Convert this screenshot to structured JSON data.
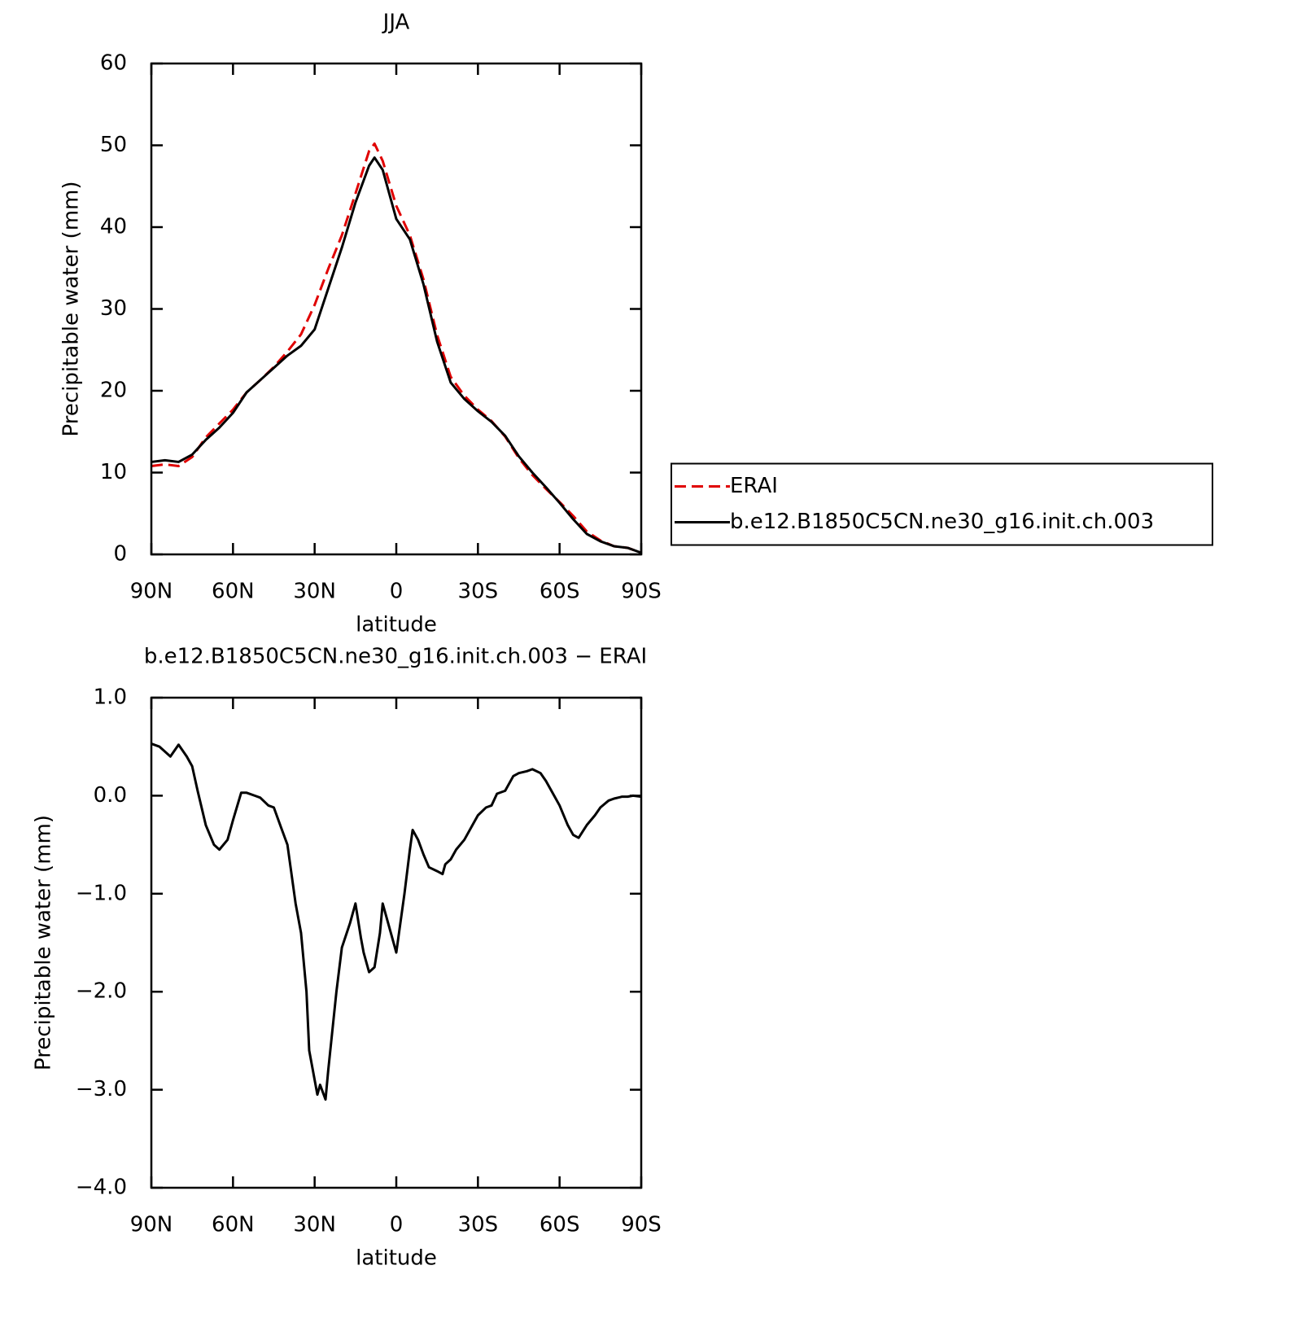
{
  "chart_data": [
    {
      "type": "line",
      "title": "JJA",
      "xlabel": "latitude",
      "ylabel": "Precipitable water (mm)",
      "x": [
        90,
        85,
        80,
        75,
        70,
        65,
        60,
        55,
        50,
        45,
        40,
        35,
        30,
        25,
        20,
        15,
        10,
        8,
        5,
        0,
        -5,
        -10,
        -15,
        -20,
        -25,
        -30,
        -35,
        -40,
        -45,
        -50,
        -55,
        -60,
        -65,
        -70,
        -75,
        -80,
        -85,
        -90
      ],
      "series": [
        {
          "name": "ERAI",
          "color": "#e00000",
          "dashed": true,
          "values": [
            10.8,
            11.0,
            10.8,
            11.9,
            14.3,
            16.0,
            17.7,
            19.8,
            21.3,
            22.9,
            24.8,
            26.9,
            30.5,
            34.9,
            39.0,
            44.1,
            49.3,
            50.2,
            48.1,
            42.6,
            39.0,
            33.6,
            26.8,
            21.7,
            19.4,
            17.7,
            16.3,
            14.4,
            11.8,
            9.7,
            8.0,
            6.4,
            4.7,
            2.8,
            1.7,
            1.0,
            0.8,
            0.2
          ]
        },
        {
          "name": "b.e12.B1850C5CN.ne30_g16.init.ch.003",
          "color": "#000000",
          "dashed": false,
          "values": [
            11.3,
            11.5,
            11.3,
            12.2,
            14.0,
            15.5,
            17.3,
            19.8,
            21.3,
            22.8,
            24.3,
            25.5,
            27.5,
            32.5,
            37.5,
            43.0,
            47.5,
            48.5,
            47.0,
            41.0,
            38.5,
            33.0,
            26.0,
            21.0,
            19.0,
            17.5,
            16.2,
            14.5,
            12.0,
            10.0,
            8.2,
            6.3,
            4.3,
            2.5,
            1.6,
            1.0,
            0.8,
            0.2
          ]
        }
      ],
      "xlim": [
        90,
        -90
      ],
      "xticks": [
        {
          "value": 90,
          "label": "90N"
        },
        {
          "value": 60,
          "label": "60N"
        },
        {
          "value": 30,
          "label": "30N"
        },
        0,
        {
          "value": -30,
          "label": "30S"
        },
        {
          "value": -60,
          "label": "60S"
        },
        {
          "value": -90,
          "label": "90S"
        }
      ],
      "ylim": [
        0,
        60
      ],
      "yticks": [
        0,
        10,
        20,
        30,
        40,
        50,
        60
      ],
      "legend": "right"
    },
    {
      "type": "line",
      "title": "b.e12.B1850C5CN.ne30_g16.init.ch.003 − ERAI",
      "xlabel": "latitude",
      "ylabel": "Precipitable water (mm)",
      "x": [
        90,
        87,
        85,
        83,
        80,
        77,
        75,
        73,
        70,
        67,
        65,
        62,
        60,
        57,
        55,
        52,
        50,
        47,
        45,
        42,
        40,
        37,
        35,
        33,
        32,
        30,
        29,
        28,
        26,
        25,
        22,
        20,
        17,
        15,
        13,
        12,
        10,
        8,
        6,
        5,
        3,
        2,
        0,
        -3,
        -5,
        -6,
        -8,
        -10,
        -12,
        -15,
        -17,
        -18,
        -20,
        -22,
        -25,
        -28,
        -30,
        -33,
        -35,
        -37,
        -40,
        -43,
        -45,
        -48,
        -50,
        -53,
        -55,
        -58,
        -60,
        -63,
        -65,
        -67,
        -70,
        -73,
        -75,
        -78,
        -80,
        -83,
        -85,
        -87,
        -90
      ],
      "values": [
        0.53,
        0.5,
        0.45,
        0.4,
        0.52,
        0.4,
        0.3,
        0.05,
        -0.3,
        -0.5,
        -0.55,
        -0.45,
        -0.25,
        0.03,
        0.03,
        0.0,
        -0.02,
        -0.1,
        -0.12,
        -0.35,
        -0.5,
        -1.1,
        -1.4,
        -2.0,
        -2.6,
        -2.9,
        -3.05,
        -2.95,
        -3.1,
        -2.8,
        -2.0,
        -1.55,
        -1.3,
        -1.1,
        -1.45,
        -1.6,
        -1.8,
        -1.75,
        -1.4,
        -1.1,
        -1.3,
        -1.4,
        -1.6,
        -1.0,
        -0.55,
        -0.35,
        -0.45,
        -0.6,
        -0.73,
        -0.77,
        -0.8,
        -0.7,
        -0.65,
        -0.55,
        -0.45,
        -0.3,
        -0.2,
        -0.12,
        -0.1,
        0.02,
        0.05,
        0.2,
        0.23,
        0.25,
        0.27,
        0.23,
        0.15,
        0.0,
        -0.1,
        -0.3,
        -0.4,
        -0.43,
        -0.3,
        -0.2,
        -0.12,
        -0.05,
        -0.03,
        -0.01,
        -0.01,
        0.0,
        -0.01
      ],
      "color": "#000000",
      "xlim": [
        90,
        -90
      ],
      "xticks": [
        {
          "value": 90,
          "label": "90N"
        },
        {
          "value": 60,
          "label": "60N"
        },
        {
          "value": 30,
          "label": "30N"
        },
        0,
        {
          "value": -30,
          "label": "30S"
        },
        {
          "value": -60,
          "label": "60S"
        },
        {
          "value": -90,
          "label": "90S"
        }
      ],
      "ylim": [
        -4,
        1
      ],
      "yticks": [
        {
          "value": -4,
          "label": "−4.0"
        },
        {
          "value": -3,
          "label": "−3.0"
        },
        {
          "value": -2,
          "label": "−2.0"
        },
        {
          "value": -1,
          "label": "−1.0"
        },
        {
          "value": 0,
          "label": "0.0"
        },
        {
          "value": 1,
          "label": "1.0"
        }
      ]
    }
  ]
}
